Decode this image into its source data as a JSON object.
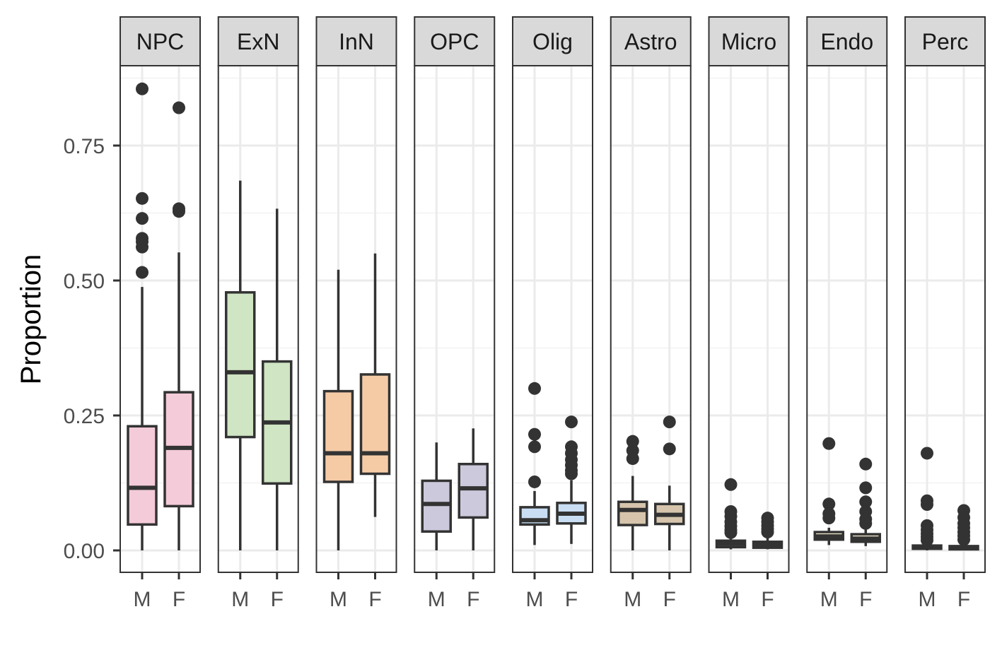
{
  "chart_data": {
    "type": "boxplot",
    "ylabel": "Proportion",
    "xlabel": "",
    "ylim": [
      -0.04,
      0.9
    ],
    "y_ticks": [
      0.0,
      0.25,
      0.5,
      0.75
    ],
    "y_tick_labels": [
      "0.00",
      "0.25",
      "0.50",
      "0.75"
    ],
    "groups": [
      "M",
      "F"
    ],
    "grid": true,
    "colors": {
      "box_stroke": "#333333",
      "grid_major": "#ebebeb",
      "grid_minor": "#f2f2f2",
      "panel_border": "#333333",
      "strip_fill": "#d9d9d9",
      "outlier": "#333333"
    },
    "panels": [
      {
        "name": "NPC",
        "fill": "#f4cbd9",
        "boxes": [
          {
            "group": "M",
            "whisker_low": 0.0,
            "q1": 0.048,
            "median": 0.116,
            "q3": 0.23,
            "whisker_high": 0.488,
            "outliers": [
              0.855,
              0.652,
              0.615,
              0.578,
              0.572,
              0.562,
              0.515
            ]
          },
          {
            "group": "F",
            "whisker_low": 0.0,
            "q1": 0.082,
            "median": 0.19,
            "q3": 0.293,
            "whisker_high": 0.552,
            "outliers": [
              0.82,
              0.633,
              0.628
            ]
          }
        ]
      },
      {
        "name": "ExN",
        "fill": "#cfe5c3",
        "boxes": [
          {
            "group": "M",
            "whisker_low": 0.0,
            "q1": 0.21,
            "median": 0.33,
            "q3": 0.478,
            "whisker_high": 0.685,
            "outliers": []
          },
          {
            "group": "F",
            "whisker_low": 0.0,
            "q1": 0.124,
            "median": 0.237,
            "q3": 0.35,
            "whisker_high": 0.633,
            "outliers": []
          }
        ]
      },
      {
        "name": "InN",
        "fill": "#f5cba6",
        "boxes": [
          {
            "group": "M",
            "whisker_low": 0.0,
            "q1": 0.127,
            "median": 0.18,
            "q3": 0.295,
            "whisker_high": 0.52,
            "outliers": []
          },
          {
            "group": "F",
            "whisker_low": 0.062,
            "q1": 0.142,
            "median": 0.18,
            "q3": 0.326,
            "whisker_high": 0.55,
            "outliers": []
          }
        ]
      },
      {
        "name": "OPC",
        "fill": "#ccc9dd",
        "boxes": [
          {
            "group": "M",
            "whisker_low": 0.0,
            "q1": 0.035,
            "median": 0.086,
            "q3": 0.129,
            "whisker_high": 0.2,
            "outliers": []
          },
          {
            "group": "F",
            "whisker_low": 0.0,
            "q1": 0.061,
            "median": 0.115,
            "q3": 0.16,
            "whisker_high": 0.226,
            "outliers": []
          }
        ]
      },
      {
        "name": "Olig",
        "fill": "#c9def3",
        "boxes": [
          {
            "group": "M",
            "whisker_low": 0.01,
            "q1": 0.048,
            "median": 0.056,
            "q3": 0.08,
            "whisker_high": 0.11,
            "outliers": [
              0.3,
              0.215,
              0.192,
              0.127
            ]
          },
          {
            "group": "F",
            "whisker_low": 0.012,
            "q1": 0.05,
            "median": 0.068,
            "q3": 0.088,
            "whisker_high": 0.13,
            "outliers": [
              0.238,
              0.192,
              0.18,
              0.168,
              0.158,
              0.148,
              0.142
            ]
          }
        ]
      },
      {
        "name": "Astro",
        "fill": "#d6c5ac",
        "boxes": [
          {
            "group": "M",
            "whisker_low": 0.0,
            "q1": 0.047,
            "median": 0.075,
            "q3": 0.09,
            "whisker_high": 0.138,
            "outliers": [
              0.202,
              0.185,
              0.17
            ]
          },
          {
            "group": "F",
            "whisker_low": 0.0,
            "q1": 0.049,
            "median": 0.066,
            "q3": 0.086,
            "whisker_high": 0.12,
            "outliers": [
              0.238,
              0.188
            ]
          }
        ]
      },
      {
        "name": "Micro",
        "fill": "#e9e9e9",
        "boxes": [
          {
            "group": "M",
            "whisker_low": 0.002,
            "q1": 0.006,
            "median": 0.012,
            "q3": 0.018,
            "whisker_high": 0.03,
            "outliers": [
              0.122,
              0.072,
              0.063,
              0.053,
              0.045,
              0.038,
              0.033
            ]
          },
          {
            "group": "F",
            "whisker_low": 0.002,
            "q1": 0.005,
            "median": 0.01,
            "q3": 0.016,
            "whisker_high": 0.028,
            "outliers": [
              0.06,
              0.053,
              0.046,
              0.04,
              0.034
            ]
          }
        ]
      },
      {
        "name": "Endo",
        "fill": "#ece2ca",
        "boxes": [
          {
            "group": "M",
            "whisker_low": 0.01,
            "q1": 0.02,
            "median": 0.026,
            "q3": 0.034,
            "whisker_high": 0.042,
            "outliers": [
              0.198,
              0.086,
              0.068,
              0.06
            ]
          },
          {
            "group": "F",
            "whisker_low": 0.008,
            "q1": 0.016,
            "median": 0.022,
            "q3": 0.03,
            "whisker_high": 0.04,
            "outliers": [
              0.16,
              0.116,
              0.09,
              0.072,
              0.058,
              0.05
            ]
          }
        ]
      },
      {
        "name": "Perc",
        "fill": "#f3e6ef",
        "boxes": [
          {
            "group": "M",
            "whisker_low": 0.0,
            "q1": 0.003,
            "median": 0.005,
            "q3": 0.009,
            "whisker_high": 0.016,
            "outliers": [
              0.18,
              0.092,
              0.085,
              0.046,
              0.038,
              0.031,
              0.025,
              0.019
            ]
          },
          {
            "group": "F",
            "whisker_low": 0.0,
            "q1": 0.002,
            "median": 0.004,
            "q3": 0.008,
            "whisker_high": 0.014,
            "outliers": [
              0.074,
              0.061,
              0.05,
              0.042,
              0.034,
              0.027,
              0.02
            ]
          }
        ]
      }
    ]
  }
}
